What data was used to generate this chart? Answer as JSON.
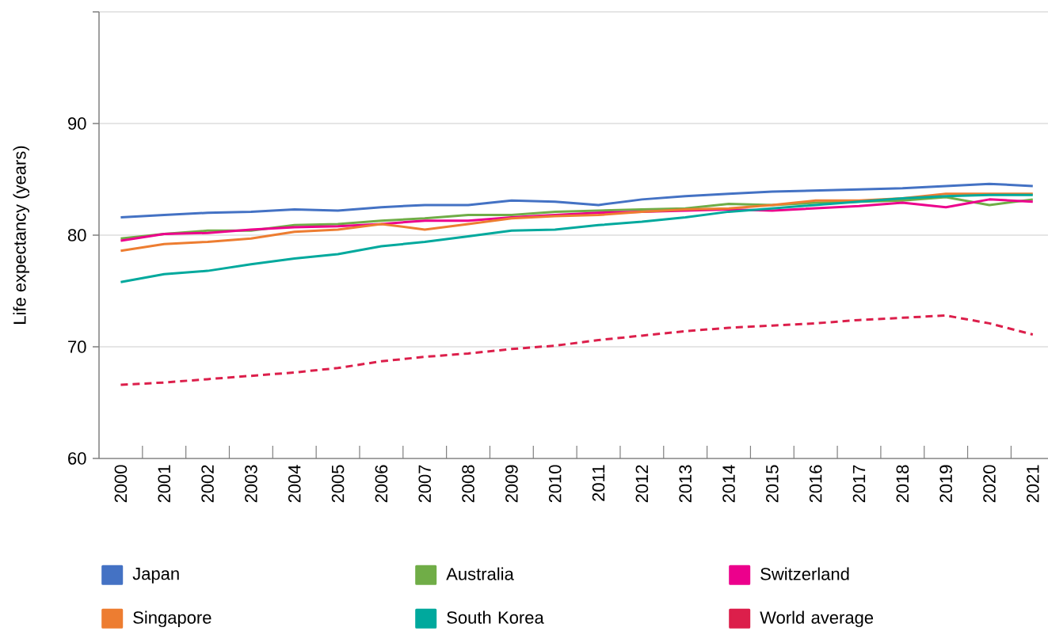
{
  "chart_data": {
    "type": "line",
    "ylabel": "Life expectancy (years)",
    "categories": [
      "2000",
      "2001",
      "2002",
      "2003",
      "2004",
      "2005",
      "2006",
      "2007",
      "2008",
      "2009",
      "2010",
      "2011",
      "2012",
      "2013",
      "2014",
      "2015",
      "2016",
      "2017",
      "2018",
      "2019",
      "2020",
      "2021"
    ],
    "series": [
      {
        "name": "Japan",
        "color": "#4472c4",
        "values": [
          81.6,
          81.8,
          82.0,
          82.1,
          82.3,
          82.2,
          82.5,
          82.7,
          82.7,
          83.1,
          83.0,
          82.7,
          83.2,
          83.5,
          83.7,
          83.9,
          84.0,
          84.1,
          84.2,
          84.4,
          84.6,
          84.4
        ]
      },
      {
        "name": "Australia",
        "color": "#70ad47",
        "values": [
          79.7,
          80.1,
          80.4,
          80.4,
          80.9,
          81.0,
          81.3,
          81.5,
          81.8,
          81.8,
          82.1,
          82.2,
          82.3,
          82.4,
          82.8,
          82.7,
          82.9,
          83.0,
          83.1,
          83.4,
          82.7,
          83.2
        ]
      },
      {
        "name": "Switzerland",
        "color": "#ec008c",
        "values": [
          79.5,
          80.1,
          80.2,
          80.5,
          80.7,
          80.8,
          81.0,
          81.3,
          81.3,
          81.6,
          81.8,
          82.0,
          82.1,
          82.2,
          82.3,
          82.2,
          82.4,
          82.6,
          82.9,
          82.5,
          83.2,
          83.0
        ]
      },
      {
        "name": "Singapore",
        "color": "#ed7d31",
        "values": [
          78.6,
          79.2,
          79.4,
          79.7,
          80.3,
          80.5,
          81.0,
          80.5,
          81.0,
          81.5,
          81.7,
          81.8,
          82.1,
          82.3,
          82.4,
          82.7,
          83.1,
          83.1,
          83.3,
          83.7,
          83.7,
          83.7
        ]
      },
      {
        "name": "South Korea",
        "color": "#00a99d",
        "values": [
          75.8,
          76.5,
          76.8,
          77.4,
          77.9,
          78.3,
          79.0,
          79.4,
          79.9,
          80.4,
          80.5,
          80.9,
          81.2,
          81.6,
          82.1,
          82.4,
          82.7,
          83.0,
          83.3,
          83.5,
          83.6,
          83.6
        ]
      },
      {
        "name": "World average",
        "color": "#dc1f4b",
        "line_style": "dashed",
        "values": [
          66.6,
          66.8,
          67.1,
          67.4,
          67.7,
          68.1,
          68.7,
          69.1,
          69.4,
          69.8,
          70.1,
          70.6,
          71.0,
          71.4,
          71.7,
          71.9,
          72.1,
          72.4,
          72.6,
          72.8,
          72.1,
          71.1
        ]
      }
    ],
    "ylim": [
      60,
      100
    ],
    "yticks": [
      60,
      70,
      80,
      90,
      {
        "value": 100,
        "label": null
      }
    ],
    "grid": "y",
    "legend": "bottom"
  }
}
